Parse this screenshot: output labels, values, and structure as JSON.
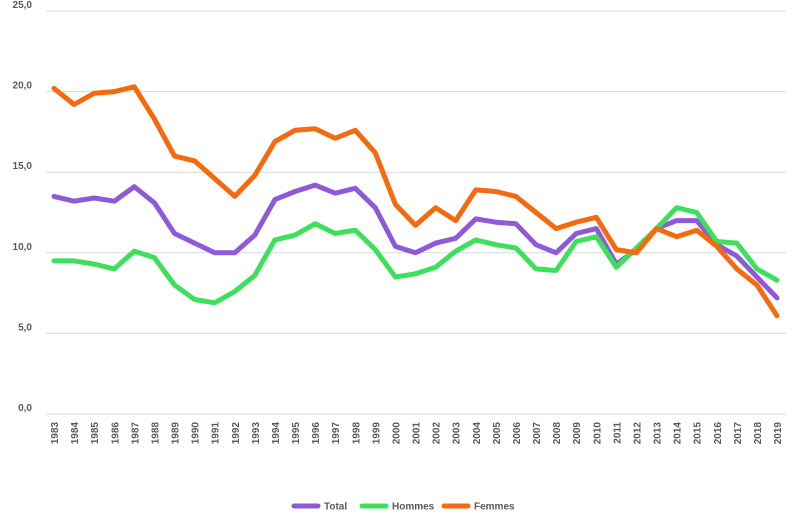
{
  "chart_data": {
    "type": "line",
    "x": [
      "1983",
      "1984",
      "1985",
      "1986",
      "1987",
      "1988",
      "1989",
      "1990",
      "1991",
      "1992",
      "1993",
      "1994",
      "1995",
      "1996",
      "1997",
      "1998",
      "1999",
      "2000",
      "2001",
      "2002",
      "2003",
      "2004",
      "2005",
      "2006",
      "2007",
      "2008",
      "2009",
      "2010",
      "2011",
      "2012",
      "2013",
      "2014",
      "2015",
      "2016",
      "2017",
      "2018",
      "2019"
    ],
    "ylim": [
      0,
      25
    ],
    "yticks": [
      "0,0",
      "5,0",
      "10,0",
      "15,0",
      "20,0",
      "25,0"
    ],
    "ytick_values": [
      0,
      5,
      10,
      15,
      20,
      25
    ],
    "grid": true,
    "legend_position": "bottom",
    "series": [
      {
        "name": "Total",
        "color": "#8e5ad8",
        "values": [
          13.5,
          13.2,
          13.4,
          13.2,
          14.1,
          13.1,
          11.2,
          10.6,
          10.0,
          10.0,
          11.1,
          13.3,
          13.8,
          14.2,
          13.7,
          14.0,
          12.8,
          10.4,
          10.0,
          10.6,
          10.9,
          12.1,
          11.9,
          11.8,
          10.5,
          10.0,
          11.2,
          11.5,
          9.3,
          10.2,
          11.5,
          12.0,
          12.0,
          10.5,
          9.8,
          8.5,
          7.2
        ]
      },
      {
        "name": "Hommes",
        "color": "#3ee05b",
        "values": [
          9.5,
          9.5,
          9.3,
          9.0,
          10.1,
          9.7,
          8.0,
          7.1,
          6.9,
          7.6,
          8.6,
          10.8,
          11.1,
          11.8,
          11.2,
          11.4,
          10.2,
          8.5,
          8.7,
          9.1,
          10.1,
          10.8,
          10.5,
          10.3,
          9.0,
          8.9,
          10.7,
          11.0,
          9.1,
          10.3,
          11.5,
          12.8,
          12.5,
          10.7,
          10.6,
          9.0,
          8.3
        ]
      },
      {
        "name": "Femmes",
        "color": "#f56a0f",
        "values": [
          20.2,
          19.2,
          19.9,
          20.0,
          20.3,
          18.3,
          16.0,
          15.7,
          14.6,
          13.5,
          14.8,
          16.9,
          17.6,
          17.7,
          17.1,
          17.6,
          16.2,
          13.0,
          11.7,
          12.8,
          12.0,
          13.9,
          13.8,
          13.5,
          12.5,
          11.5,
          11.9,
          12.2,
          10.2,
          10.0,
          11.5,
          11.0,
          11.4,
          10.4,
          9.0,
          8.0,
          6.1
        ]
      }
    ]
  }
}
